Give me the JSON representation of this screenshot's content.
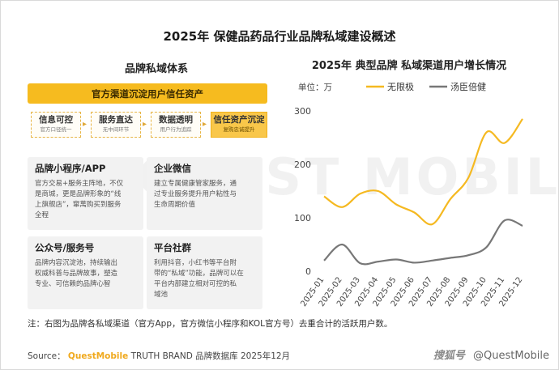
{
  "title": "2025年 保健品药品行业品牌私域建设概述",
  "left_panel": {
    "title": "品牌私域体系",
    "banner": "官方渠道沉淀用户信任资产",
    "steps": [
      {
        "title": "信息可控",
        "sub": "官方口径统一"
      },
      {
        "title": "服务直达",
        "sub": "无中间环节"
      },
      {
        "title": "数据透明",
        "sub": "用户行为追踪"
      },
      {
        "title": "信任资产沉淀",
        "sub": "复购忠诚提升"
      }
    ],
    "cards": [
      {
        "heading": "品牌小程序/APP",
        "body": [
          "官方交易+服务主阵地，不仅",
          "是商城，更是品牌形象的“线",
          "上旗舰店”，窜萬购买到服务",
          "全程"
        ]
      },
      {
        "heading": "企业微信",
        "body": [
          "建立专属健康管家服务，通",
          "过专业服务提升用户粘性与",
          "生命周期价值"
        ]
      },
      {
        "heading": "公众号/服务号",
        "body": [
          "品牌内容沉淀池，持续输出",
          "权威科普与品牌故事，塑造",
          "专业、可信赖的品牌心智"
        ]
      },
      {
        "heading": "平台社群",
        "body": [
          "利用抖音，小红书等平台附",
          "带的“私域”功能，品牌可以在",
          "平台内部建立相对可控的私",
          "域池"
        ]
      }
    ]
  },
  "chart_data": {
    "type": "line",
    "title": "2025年 典型品牌 私域渠道用户增长情况",
    "unit_label": "单位：万",
    "categories": [
      "2025-01",
      "2025-02",
      "2025-03",
      "2025-04",
      "2025-05",
      "2025-06",
      "2025-07",
      "2025-08",
      "2025-09",
      "2025-10",
      "2025-11",
      "2025-12"
    ],
    "series": [
      {
        "name": "无限极",
        "color": "#f5b921",
        "values": [
          140,
          120,
          145,
          150,
          125,
          110,
          88,
          135,
          175,
          260,
          240,
          285
        ]
      },
      {
        "name": "汤臣倍健",
        "color": "#777777",
        "values": [
          20,
          50,
          15,
          18,
          22,
          16,
          20,
          25,
          30,
          45,
          95,
          85
        ]
      }
    ],
    "yticks": [
      0,
      100,
      200,
      300
    ],
    "ylim": [
      0,
      300
    ],
    "legend": "top-center",
    "grid": false
  },
  "footnote": "注：右图为品牌各私域渠道（官方App，官方微信小程序和KOL官方号）去重合计的活跃用户数。",
  "source": {
    "prefix": "Source：",
    "brand": "QuestMobile",
    "rest": "TRUTH BRAND 品牌数据库 2025年12月"
  },
  "watermark": "QUEST MOBILE",
  "credit": {
    "logo": "搜狐号",
    "handle": "@QuestMobile"
  }
}
